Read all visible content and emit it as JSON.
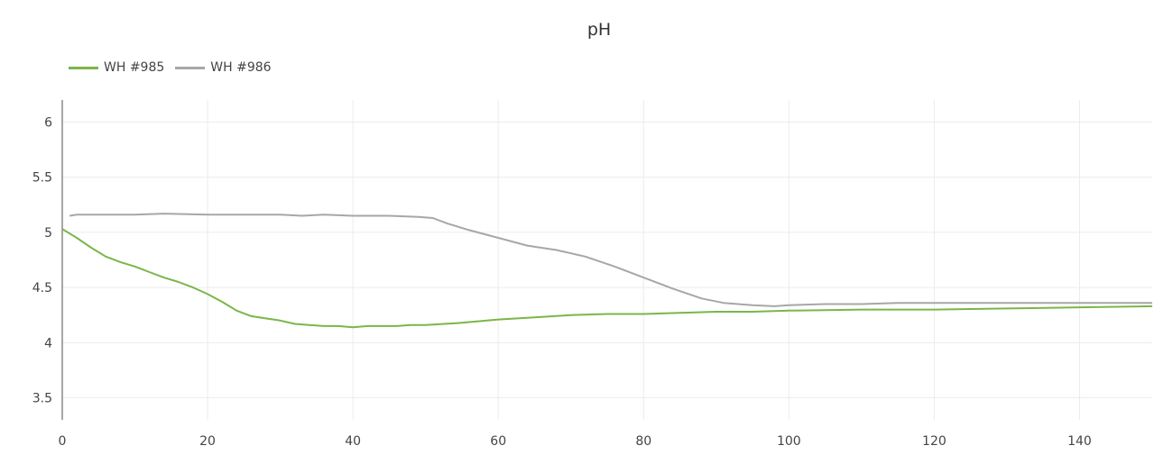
{
  "chart_data": {
    "type": "line",
    "title": "pH",
    "xlabel": "",
    "ylabel": "",
    "xlim": [
      0,
      150
    ],
    "ylim": [
      3.3,
      6.2
    ],
    "x_ticks": [
      0,
      20,
      40,
      60,
      80,
      100,
      120,
      140
    ],
    "y_ticks": [
      3.5,
      4,
      4.5,
      5,
      5.5,
      6
    ],
    "y_tick_labels": [
      "3.5",
      "4",
      "4.5",
      "5",
      "5.5",
      "6"
    ],
    "grid": true,
    "legend_position": "top-left",
    "series": [
      {
        "name": "WH #985",
        "color": "#7ab648",
        "x": [
          0,
          2,
          4,
          6,
          8,
          10,
          12,
          14,
          16,
          18,
          20,
          22,
          24,
          26,
          28,
          30,
          32,
          34,
          36,
          38,
          40,
          42,
          44,
          46,
          48,
          50,
          55,
          60,
          65,
          70,
          75,
          80,
          85,
          90,
          95,
          100,
          110,
          120,
          130,
          140,
          150
        ],
        "y": [
          5.03,
          4.95,
          4.86,
          4.78,
          4.73,
          4.69,
          4.64,
          4.59,
          4.55,
          4.5,
          4.44,
          4.37,
          4.29,
          4.24,
          4.22,
          4.2,
          4.17,
          4.16,
          4.15,
          4.15,
          4.14,
          4.15,
          4.15,
          4.15,
          4.16,
          4.16,
          4.18,
          4.21,
          4.23,
          4.25,
          4.26,
          4.26,
          4.27,
          4.28,
          4.28,
          4.29,
          4.3,
          4.3,
          4.31,
          4.32,
          4.33
        ]
      },
      {
        "name": "WH #986",
        "color": "#a7a7a7",
        "x": [
          1,
          2,
          5,
          10,
          14,
          20,
          25,
          30,
          33,
          36,
          40,
          45,
          49,
          51,
          53,
          56,
          60,
          64,
          68,
          72,
          76,
          80,
          84,
          88,
          91,
          95,
          98,
          100,
          105,
          110,
          115,
          120,
          130,
          140,
          150
        ],
        "y": [
          5.15,
          5.16,
          5.16,
          5.16,
          5.17,
          5.16,
          5.16,
          5.16,
          5.15,
          5.16,
          5.15,
          5.15,
          5.14,
          5.13,
          5.08,
          5.02,
          4.95,
          4.88,
          4.84,
          4.78,
          4.69,
          4.59,
          4.49,
          4.4,
          4.36,
          4.34,
          4.33,
          4.34,
          4.35,
          4.35,
          4.36,
          4.36,
          4.36,
          4.36,
          4.36
        ]
      }
    ]
  }
}
